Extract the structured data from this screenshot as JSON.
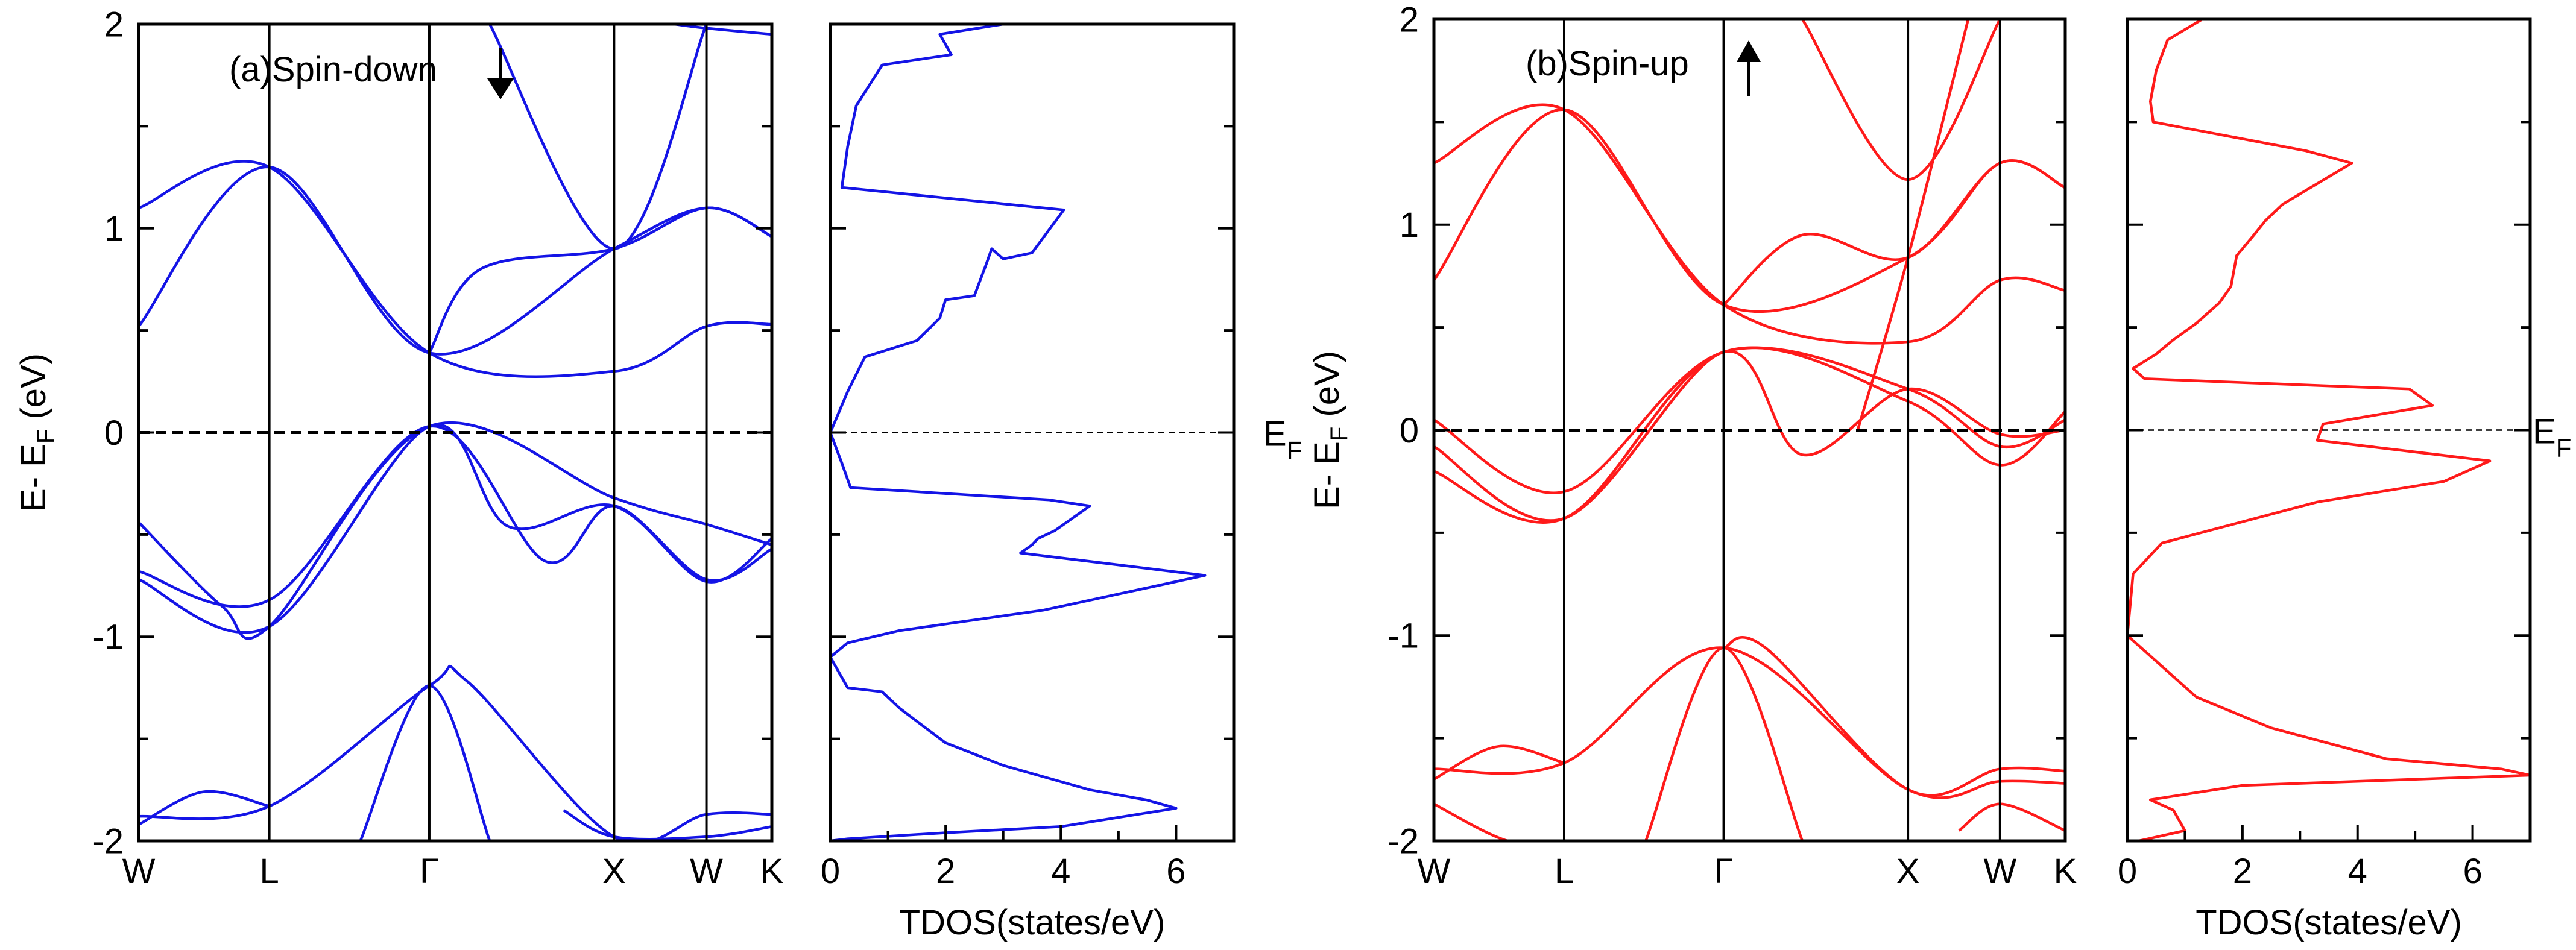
{
  "figure": {
    "ylabel_main": "E- E",
    "ylabel_sub": "F",
    "ylabel_unit": " (eV)",
    "fermi_label_main": "E",
    "fermi_label_sub": "F",
    "kpoints": [
      "W",
      "L",
      "Γ",
      "X",
      "W",
      "K"
    ],
    "colors": {
      "spin_down": "#1414e6",
      "spin_up": "#ff1a1a",
      "axis": "#000000",
      "fermi": "#000000"
    }
  },
  "chart_data": [
    {
      "type": "line",
      "panel": "band-structure",
      "title": "(a)Spin-down",
      "annotation": "arrow-down",
      "xlabel": "",
      "ylabel": "E- EF (eV)",
      "ylim": [
        -2,
        2
      ],
      "yticks": [
        -2,
        -1,
        0,
        1,
        2
      ],
      "kpoints": [
        "W",
        "L",
        "Γ",
        "X",
        "W",
        "K"
      ],
      "kpath_positions": [
        0,
        0.707,
        1.573,
        2.573,
        3.073,
        3.427
      ],
      "fermi_level": 0,
      "series": [
        {
          "name": "band-1",
          "x": [
            0,
            0.707,
            1.573,
            1.78,
            2.573,
            3.073,
            3.427
          ],
          "y": [
            -1.88,
            -1.83,
            -1.24,
            -1.22,
            -1.98,
            -1.87,
            -1.87
          ]
        },
        {
          "name": "band-2",
          "x": [
            0,
            0.35,
            0.707
          ],
          "y": [
            -1.92,
            -1.76,
            -1.83
          ]
        },
        {
          "name": "band-3",
          "x": [
            1.2,
            1.573,
            1.9
          ],
          "y": [
            -2.0,
            -1.24,
            -2.0
          ]
        },
        {
          "name": "band-4",
          "x": [
            2.3,
            2.573,
            3.073,
            3.427
          ],
          "y": [
            -1.85,
            -1.98,
            -1.98,
            -1.93
          ]
        },
        {
          "name": "band-5",
          "x": [
            0,
            0.707,
            1.573,
            2.0,
            2.573,
            3.073,
            3.427
          ],
          "y": [
            -0.72,
            -0.95,
            0.03,
            -0.46,
            -0.36,
            -0.73,
            -0.52
          ]
        },
        {
          "name": "band-6",
          "x": [
            0,
            0.707,
            1.573,
            2.2,
            2.573,
            3.073,
            3.427
          ],
          "y": [
            -0.68,
            -0.82,
            0.03,
            -0.63,
            -0.36,
            -0.72,
            -0.57
          ]
        },
        {
          "name": "band-7",
          "x": [
            0,
            0.45,
            0.707,
            1.573,
            2.573,
            3.073,
            3.427
          ],
          "y": [
            -0.44,
            -0.85,
            -0.95,
            0.03,
            -0.32,
            -0.45,
            -0.55
          ]
        },
        {
          "name": "band-8",
          "x": [
            0,
            0.707,
            1.573,
            2.573,
            3.073,
            3.427
          ],
          "y": [
            0.52,
            1.3,
            0.39,
            0.9,
            1.1,
            0.96
          ]
        },
        {
          "name": "band-9",
          "x": [
            0,
            0.707,
            1.573,
            2.573,
            3.073,
            3.427
          ],
          "y": [
            1.1,
            1.3,
            0.39,
            0.3,
            0.52,
            0.53
          ]
        },
        {
          "name": "band-10",
          "x": [
            1.573,
            1.85,
            2.573,
            3.073,
            3.427
          ],
          "y": [
            0.39,
            0.8,
            0.9,
            1.1,
            0.96
          ]
        },
        {
          "name": "band-11",
          "x": [
            1.9,
            2.573,
            3.073
          ],
          "y": [
            2.0,
            0.9,
            2.0
          ]
        },
        {
          "name": "band-12",
          "x": [
            2.9,
            3.073,
            3.427
          ],
          "y": [
            2.0,
            1.98,
            1.95
          ]
        }
      ]
    },
    {
      "type": "line",
      "panel": "dos",
      "xlabel": "TDOS(states/eV)",
      "ylabel": "",
      "xlim": [
        0,
        7
      ],
      "ylim": [
        -2,
        2
      ],
      "xticks": [
        0,
        2,
        4,
        6
      ],
      "fermi_level": 0,
      "series": [
        {
          "name": "tdos",
          "x": [
            3.0,
            1.9,
            2.1,
            0.9,
            0.45,
            0.3,
            0.25,
            0.2,
            3.0,
            4.05,
            3.5,
            3.0,
            2.8,
            2.7,
            2.5,
            2.0,
            1.9,
            1.5,
            0.6,
            0.3,
            0.0,
            0.2,
            0.35,
            3.8,
            4.5,
            3.9,
            3.6,
            3.5,
            3.3,
            6.5,
            3.7,
            1.2,
            0.3,
            0.0,
            0.3,
            0.9,
            1.2,
            2.0,
            3.0,
            4.5,
            5.5,
            6.0,
            4.0,
            2.0,
            0.3,
            0.0
          ],
          "y": [
            2.0,
            1.95,
            1.85,
            1.8,
            1.6,
            1.4,
            1.3,
            1.2,
            1.12,
            1.09,
            0.88,
            0.85,
            0.9,
            0.82,
            0.67,
            0.65,
            0.56,
            0.45,
            0.37,
            0.2,
            0.0,
            -0.15,
            -0.27,
            -0.33,
            -0.36,
            -0.48,
            -0.52,
            -0.55,
            -0.59,
            -0.7,
            -0.87,
            -0.97,
            -1.03,
            -1.1,
            -1.25,
            -1.27,
            -1.35,
            -1.52,
            -1.63,
            -1.75,
            -1.8,
            -1.84,
            -1.93,
            -1.96,
            -1.99,
            -2.0
          ]
        }
      ]
    },
    {
      "type": "line",
      "panel": "band-structure",
      "title": "(b)Spin-up",
      "annotation": "arrow-up",
      "xlabel": "",
      "ylabel": "E- EF (eV)",
      "ylim": [
        -2,
        2
      ],
      "yticks": [
        -2,
        -1,
        0,
        1,
        2
      ],
      "kpoints": [
        "W",
        "L",
        "Γ",
        "X",
        "W",
        "K"
      ],
      "kpath_positions": [
        0,
        0.707,
        1.573,
        2.573,
        3.073,
        3.427
      ],
      "fermi_level": 0,
      "series": [
        {
          "name": "band-1",
          "x": [
            0,
            0.707,
            1.573,
            2.573,
            3.073,
            3.427
          ],
          "y": [
            -1.65,
            -1.62,
            -1.06,
            -1.75,
            -1.71,
            -1.72
          ]
        },
        {
          "name": "band-2",
          "x": [
            0,
            0.35,
            0.707
          ],
          "y": [
            -1.7,
            -1.54,
            -1.62
          ]
        },
        {
          "name": "band-3",
          "x": [
            0,
            0.4,
            0.707
          ],
          "y": [
            -1.82,
            -2.0,
            -2.0
          ]
        },
        {
          "name": "band-4",
          "x": [
            1.15,
            1.573,
            2.0
          ],
          "y": [
            -2.0,
            -1.06,
            -2.0
          ]
        },
        {
          "name": "band-5",
          "x": [
            1.573,
            1.8,
            2.573,
            3.073,
            3.427
          ],
          "y": [
            -1.06,
            -1.06,
            -1.75,
            -1.65,
            -1.66
          ]
        },
        {
          "name": "band-6",
          "x": [
            2.85,
            3.073,
            3.427
          ],
          "y": [
            -1.95,
            -1.82,
            -1.95
          ]
        },
        {
          "name": "band-7",
          "x": [
            0,
            0.707,
            1.573,
            2.573,
            3.073,
            3.427
          ],
          "y": [
            -0.2,
            -0.43,
            0.38,
            0.14,
            -0.17,
            0.09
          ]
        },
        {
          "name": "band-8",
          "x": [
            0,
            0.707,
            1.573,
            2.573,
            3.073,
            3.427
          ],
          "y": [
            0.05,
            -0.3,
            0.38,
            0.2,
            -0.08,
            0.05
          ]
        },
        {
          "name": "band-9",
          "x": [
            0,
            0.707,
            1.573,
            2.0,
            2.573,
            3.073,
            3.427
          ],
          "y": [
            -0.08,
            -0.43,
            0.38,
            -0.12,
            0.2,
            -0.02,
            0.0
          ]
        },
        {
          "name": "band-10",
          "x": [
            0,
            0.707,
            1.573,
            2.573,
            3.073,
            3.427
          ],
          "y": [
            0.73,
            1.56,
            0.61,
            0.84,
            1.3,
            1.18
          ]
        },
        {
          "name": "band-11",
          "x": [
            0,
            0.707,
            1.573,
            2.573,
            3.073,
            3.427
          ],
          "y": [
            1.3,
            1.56,
            0.61,
            0.43,
            0.73,
            0.68
          ]
        },
        {
          "name": "band-12",
          "x": [
            1.573,
            2.0,
            2.573,
            3.073,
            3.427
          ],
          "y": [
            0.61,
            0.95,
            0.84,
            1.3,
            1.18
          ]
        },
        {
          "name": "band-13",
          "x": [
            2.0,
            2.573,
            3.073
          ],
          "y": [
            2.0,
            1.22,
            2.0
          ]
        },
        {
          "name": "band-14",
          "x": [
            2.3,
            2.573,
            2.9
          ],
          "y": [
            0.0,
            0.84,
            2.0
          ]
        }
      ]
    },
    {
      "type": "line",
      "panel": "dos",
      "xlabel": "TDOS(states/eV)",
      "ylabel": "",
      "xlim": [
        0,
        7
      ],
      "ylim": [
        -2,
        2
      ],
      "xticks": [
        0,
        2,
        4,
        6
      ],
      "fermi_level": 0,
      "series": [
        {
          "name": "tdos",
          "x": [
            1.3,
            0.7,
            0.5,
            0.4,
            0.45,
            3.1,
            3.9,
            3.6,
            2.7,
            2.4,
            2.2,
            1.9,
            1.8,
            1.6,
            1.2,
            0.8,
            0.5,
            0.1,
            0.3,
            4.9,
            5.3,
            3.4,
            3.3,
            6.3,
            5.5,
            3.3,
            0.6,
            0.1,
            0.0,
            0.6,
            1.2,
            2.5,
            4.5,
            6.5,
            7.0,
            2.0,
            0.4,
            0.8,
            1.0,
            0.2
          ],
          "y": [
            2.0,
            1.9,
            1.75,
            1.6,
            1.5,
            1.36,
            1.3,
            1.25,
            1.1,
            1.02,
            0.95,
            0.85,
            0.7,
            0.62,
            0.52,
            0.44,
            0.37,
            0.3,
            0.25,
            0.2,
            0.12,
            0.03,
            -0.05,
            -0.15,
            -0.25,
            -0.35,
            -0.55,
            -0.7,
            -1.0,
            -1.15,
            -1.3,
            -1.45,
            -1.6,
            -1.65,
            -1.68,
            -1.73,
            -1.8,
            -1.85,
            -1.95,
            -2.0
          ]
        }
      ]
    }
  ]
}
